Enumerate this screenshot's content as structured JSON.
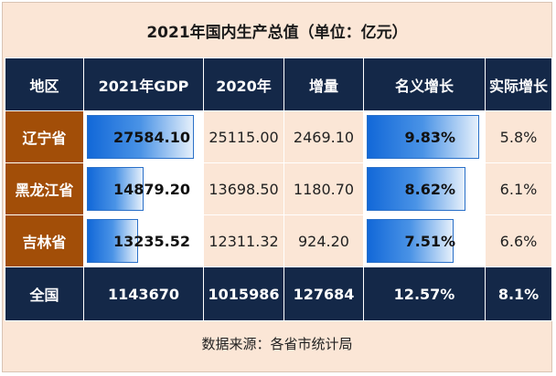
{
  "title": "2021年国内生产总值（单位：亿元）",
  "headers": [
    "地区",
    "2021年GDP",
    "2020年",
    "增量",
    "名义增长",
    "实际增长"
  ],
  "rows": [
    {
      "region": "辽宁省",
      "gdp2021": "27584.10",
      "gdp2021_fill": 0.94,
      "gdp2020": "25115.00",
      "increase": "2469.10",
      "nominal": "9.83%",
      "nominal_fill": 0.98,
      "real": "5.8%"
    },
    {
      "region": "黑龙江省",
      "gdp2021": "14879.20",
      "gdp2021_fill": 0.5,
      "gdp2020": "13698.50",
      "increase": "1180.70",
      "nominal": "8.62%",
      "nominal_fill": 0.86,
      "real": "6.1%"
    },
    {
      "region": "吉林省",
      "gdp2021": "13235.52",
      "gdp2021_fill": 0.45,
      "gdp2020": "12311.32",
      "increase": "924.20",
      "nominal": "7.51%",
      "nominal_fill": 0.75,
      "real": "6.6%"
    }
  ],
  "total": {
    "region": "全国",
    "gdp2021": "1143670",
    "gdp2020": "1015986",
    "increase": "127684",
    "nominal": "12.57%",
    "real": "8.1%"
  },
  "source": "数据来源：各省市统计局",
  "colors": {
    "header_bg": "#142848",
    "region_bg": "#a24e08",
    "page_bg": "#fbe6d6",
    "bar_blue": "#1268d8"
  }
}
